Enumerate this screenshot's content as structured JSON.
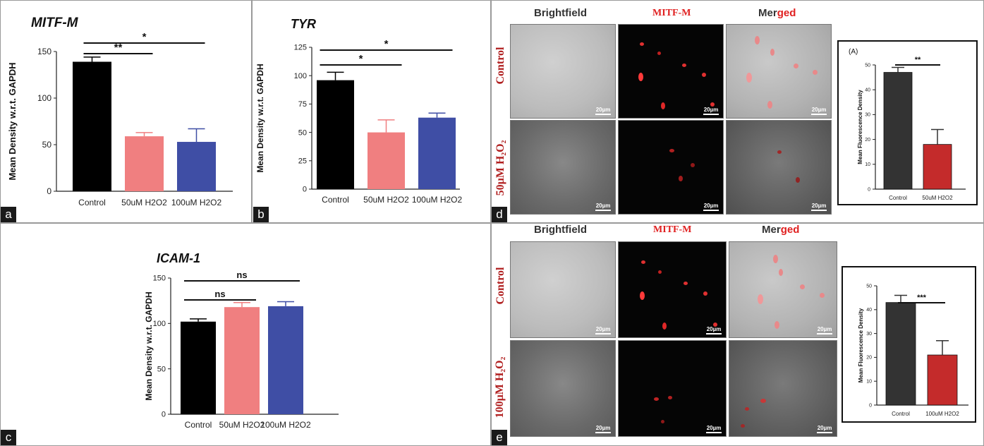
{
  "panels": {
    "a": {
      "label": "a",
      "chart_data": {
        "type": "bar",
        "title": "MITF-M",
        "ylabel": "Mean Density w.r.t. GAPDH",
        "categories": [
          "Control",
          "50uM H2O2",
          "100uM H2O2"
        ],
        "values": [
          139,
          59,
          53
        ],
        "errors": [
          5,
          4,
          14
        ],
        "colors": [
          "#000000",
          "#f07f80",
          "#3f4ea5"
        ],
        "ylim": [
          0,
          150
        ],
        "yticks": [
          "0",
          "50",
          "100",
          "150"
        ],
        "significance": [
          {
            "from": 0,
            "to": 1,
            "label": "**"
          },
          {
            "from": 0,
            "to": 2,
            "label": "*"
          }
        ]
      }
    },
    "b": {
      "label": "b",
      "chart_data": {
        "type": "bar",
        "title": "TYR",
        "ylabel": "Mean Density w.r.t. GAPDH",
        "categories": [
          "Control",
          "50uM H2O2",
          "100uM H2O2"
        ],
        "values": [
          96,
          50,
          63
        ],
        "errors": [
          7,
          11,
          4
        ],
        "colors": [
          "#000000",
          "#f07f80",
          "#3f4ea5"
        ],
        "ylim": [
          0,
          125
        ],
        "yticks": [
          "0",
          "25",
          "50",
          "75",
          "100",
          "125"
        ],
        "significance": [
          {
            "from": 0,
            "to": 1,
            "label": "*"
          },
          {
            "from": 0,
            "to": 2,
            "label": "*"
          }
        ]
      }
    },
    "c": {
      "label": "c",
      "chart_data": {
        "type": "bar",
        "title": "ICAM-1",
        "ylabel": "Mean Density w.r.t. GAPDH",
        "categories": [
          "Control",
          "50uM H2O2",
          "100uM H2O2"
        ],
        "values": [
          102,
          118,
          119
        ],
        "errors": [
          3,
          5,
          5
        ],
        "colors": [
          "#000000",
          "#f07f80",
          "#3f4ea5"
        ],
        "ylim": [
          0,
          150
        ],
        "yticks": [
          "0",
          "50",
          "100",
          "150"
        ],
        "significance": [
          {
            "from": 0,
            "to": 1,
            "label": "ns"
          },
          {
            "from": 0,
            "to": 2,
            "label": "ns"
          }
        ]
      }
    },
    "d": {
      "label": "d",
      "headers": {
        "brightfield": "Brightfield",
        "mitf": "MITF-M",
        "merged_a": "Mer",
        "merged_b": "ged"
      },
      "row_labels": [
        "Control",
        "50µM H₂O₂"
      ],
      "scale_bar": "20µm",
      "chart_data": {
        "type": "bar",
        "title": "(A)",
        "ylabel": "Mean Fluorescence Density",
        "categories": [
          "Control",
          "50uM H2O2"
        ],
        "values": [
          47,
          18
        ],
        "errors": [
          2,
          6
        ],
        "colors": [
          "#333333",
          "#c42b2b"
        ],
        "ylim": [
          0,
          50
        ],
        "yticks": [
          "0",
          "10",
          "20",
          "30",
          "40",
          "50"
        ],
        "significance": [
          {
            "from": 0,
            "to": 1,
            "label": "**"
          }
        ]
      }
    },
    "e": {
      "label": "e",
      "headers": {
        "brightfield": "Brightfield",
        "mitf": "MITF-M",
        "merged_a": "Mer",
        "merged_b": "ged"
      },
      "row_labels": [
        "Control",
        "100µM H₂O₂"
      ],
      "scale_bar": "20µm",
      "chart_data": {
        "type": "bar",
        "title": "",
        "ylabel": "Mean Fluorescence Density",
        "categories": [
          "Control",
          "100uM H2O2"
        ],
        "values": [
          43,
          21
        ],
        "errors": [
          3,
          6
        ],
        "colors": [
          "#333333",
          "#c42b2b"
        ],
        "ylim": [
          0,
          50
        ],
        "yticks": [
          "0",
          "10",
          "20",
          "30",
          "40",
          "50"
        ],
        "significance": [
          {
            "from": 0,
            "to": 1,
            "label": "***"
          }
        ]
      }
    }
  }
}
